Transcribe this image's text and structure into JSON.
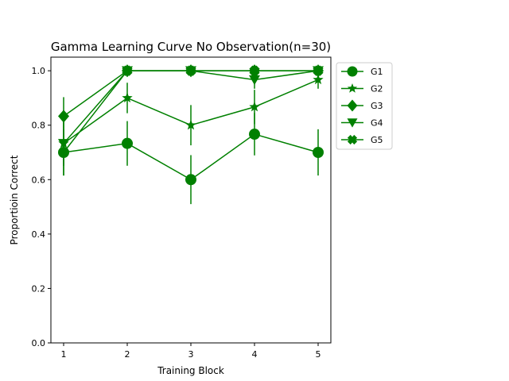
{
  "chart_data": {
    "type": "line",
    "title": "Gamma Learning Curve No Observation(n=30)",
    "xlabel": "Training Block",
    "ylabel": "Proportioin Correct",
    "x": [
      1,
      2,
      3,
      4,
      5
    ],
    "xticks": [
      "1",
      "2",
      "3",
      "4",
      "5"
    ],
    "yticks": [
      "0.0",
      "0.2",
      "0.4",
      "0.6",
      "0.8",
      "1.0"
    ],
    "xlim": [
      0.8,
      5.2
    ],
    "ylim": [
      0.0,
      1.05
    ],
    "grid": false,
    "legend_position": "outside-top-right",
    "line_color": "#008000",
    "series": [
      {
        "name": "G1",
        "marker": "circle",
        "values": [
          0.7,
          0.733,
          0.6,
          0.767,
          0.7
        ],
        "errors": [
          0.085,
          0.082,
          0.09,
          0.078,
          0.085
        ]
      },
      {
        "name": "G2",
        "marker": "star",
        "values": [
          0.733,
          0.9,
          0.8,
          0.867,
          0.967
        ],
        "errors": [
          0.082,
          0.056,
          0.074,
          0.063,
          0.033
        ]
      },
      {
        "name": "G3",
        "marker": "diamond",
        "values": [
          0.833,
          1.0,
          1.0,
          1.0,
          1.0
        ],
        "errors": [
          0.07,
          0,
          0,
          0,
          0
        ]
      },
      {
        "name": "G4",
        "marker": "triangle-down",
        "values": [
          0.733,
          1.0,
          1.0,
          0.967,
          1.0
        ],
        "errors": [
          0.082,
          0,
          0,
          0.033,
          0
        ]
      },
      {
        "name": "G5",
        "marker": "x-filled",
        "values": [
          0.7,
          1.0,
          1.0,
          1.0,
          1.0
        ],
        "errors": [
          0.085,
          0,
          0,
          0,
          0
        ]
      }
    ]
  }
}
